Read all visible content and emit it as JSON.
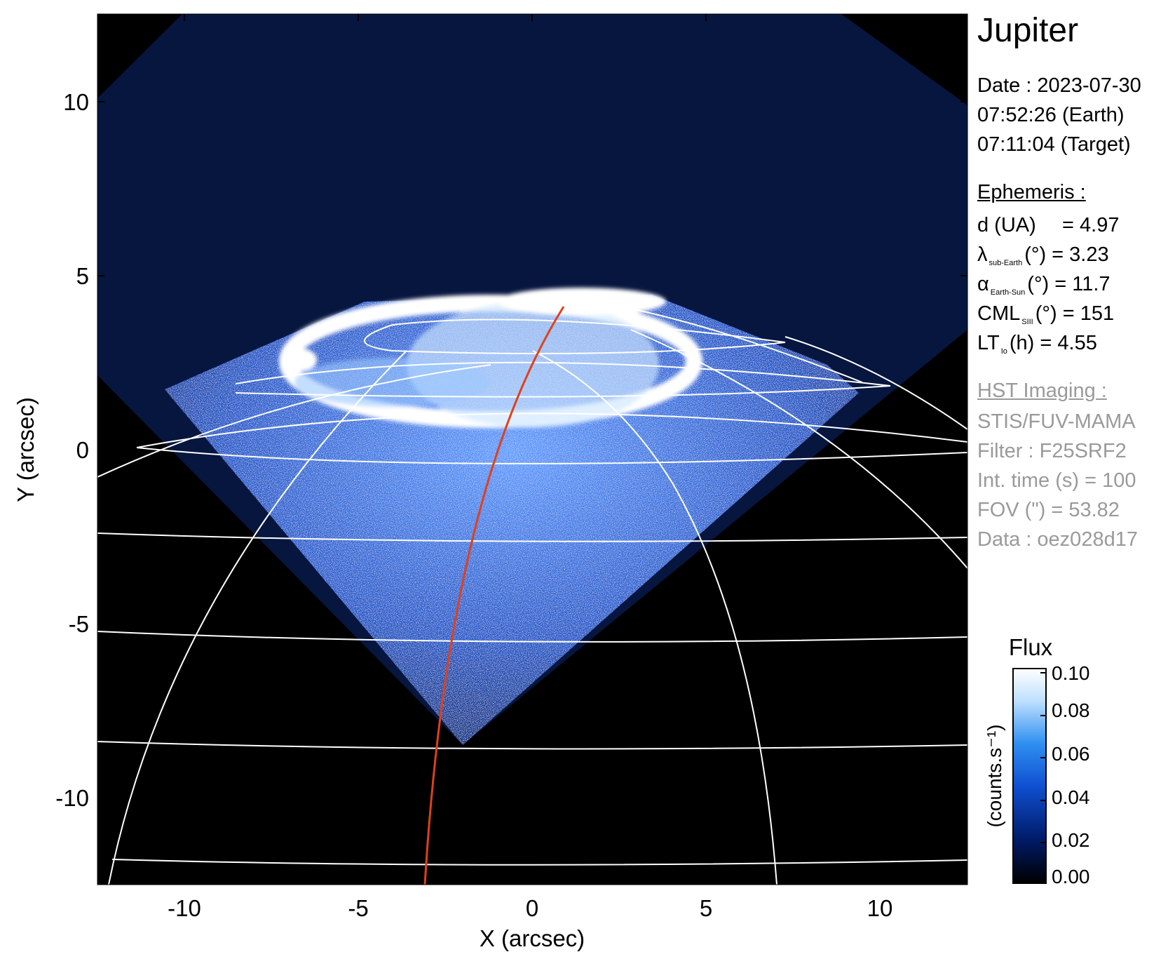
{
  "target": "Jupiter",
  "observation": {
    "date_line": "Date : 2023-07-30",
    "earth_time": "07:52:26 (Earth)",
    "target_time": "07:11:04 (Target)"
  },
  "ephemeris": {
    "header": "Ephemeris :",
    "rows": [
      {
        "sym": "d (UA)",
        "sub": "",
        "rest": "    = 4.97"
      },
      {
        "sym": "λ",
        "sub": "sub-Earth",
        "rest": "(°) = 3.23"
      },
      {
        "sym": "α",
        "sub": "Earth-Sun",
        "rest": "(°) = 11.7"
      },
      {
        "sym": "CML",
        "sub": "SIII",
        "rest": "(°) = 151"
      },
      {
        "sym": "LT",
        "sub": "Io",
        "rest": "(h) = 4.55"
      }
    ]
  },
  "imaging": {
    "header": "HST Imaging :",
    "instrument": "STIS/FUV-MAMA",
    "filter": "Filter : F25SRF2",
    "int_time": "Int. time (s) = 100",
    "fov": "FOV (\") = 53.82",
    "data": "Data : oez028d17"
  },
  "axes": {
    "x_label": "X (arcsec)",
    "y_label": "Y (arcsec)",
    "x_ticks": [
      -10,
      -5,
      0,
      5,
      10
    ],
    "y_ticks": [
      10,
      5,
      0,
      -5,
      -10
    ],
    "x_range": [
      -12.5,
      12.5
    ],
    "y_range": [
      -12.5,
      12.5
    ]
  },
  "colorbar": {
    "title": "Flux",
    "unit_label": "(counts.s⁻¹)",
    "ticks": [
      "0.10",
      "0.08",
      "0.06",
      "0.04",
      "0.02",
      "0.00"
    ],
    "range": [
      0.0,
      0.1
    ],
    "colors": [
      "#000000",
      "#001a66",
      "#0f4fd1",
      "#2f8ff0",
      "#bfe0ff",
      "#ffffff"
    ]
  },
  "colors": {
    "sky": "#000000",
    "aurora_bright": "#ffffff",
    "aurora_dim": "#1d56c8",
    "grid": "#ffffff",
    "io_footprint": "#e0401a"
  }
}
